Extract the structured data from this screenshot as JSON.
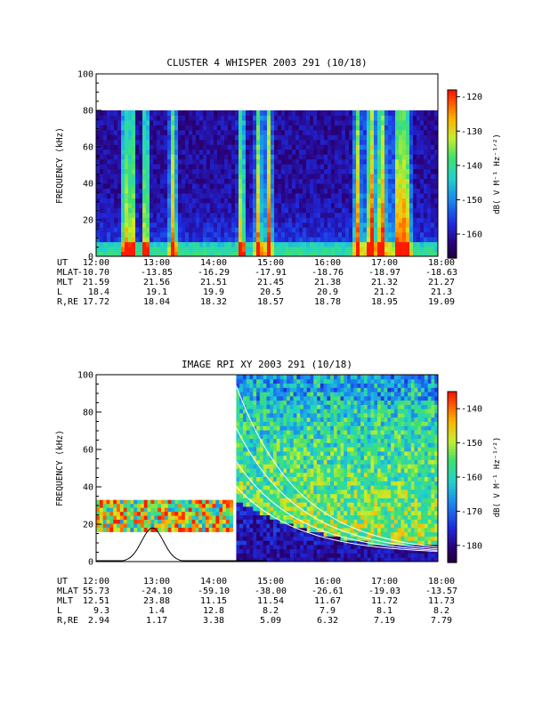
{
  "chart_data": [
    {
      "type": "heatmap",
      "title": "CLUSTER 4 WHISPER 2003 291 (10/18)",
      "ylabel": "FREQUENCY (kHz)",
      "ylim": [
        0,
        100
      ],
      "yticks": [
        "0",
        "20",
        "40",
        "60",
        "80",
        "100"
      ],
      "data_ylim": [
        0,
        80
      ],
      "colorbar": {
        "label": "dB( V M⁻¹ Hz⁻¹ᐟ²)",
        "range": [
          -167,
          -118
        ],
        "ticks": [
          "-120",
          "-130",
          "-140",
          "-150",
          "-160"
        ],
        "tick_values": [
          -120,
          -130,
          -140,
          -150,
          -160
        ]
      },
      "x": [
        "12:00",
        "13:00",
        "14:00",
        "15:00",
        "16:00",
        "17:00",
        "18:00"
      ],
      "row_labels": [
        "UT",
        "MLAT",
        "MLT",
        "L",
        "R,RE"
      ],
      "rows": {
        "MLAT": [
          "-10.70",
          "-13.85",
          "-16.29",
          "-17.91",
          "-18.76",
          "-18.97",
          "-18.63"
        ],
        "MLT": [
          "21.59",
          "21.56",
          "21.51",
          "21.45",
          "21.38",
          "21.32",
          "21.27"
        ],
        "L": [
          "18.4",
          "19.1",
          "19.9",
          "20.5",
          "20.9",
          "21.2",
          "21.3"
        ],
        "R,RE": [
          "17.72",
          "18.04",
          "18.32",
          "18.57",
          "18.78",
          "18.95",
          "19.09"
        ]
      }
    },
    {
      "type": "heatmap",
      "title": "IMAGE RPI XY 2003 291 (10/18)",
      "ylabel": "FREQUENCY (kHz)",
      "ylim": [
        0,
        100
      ],
      "yticks": [
        "0",
        "20",
        "40",
        "60",
        "80",
        "100"
      ],
      "colorbar": {
        "label": "dB( V M⁻¹ Hz⁻¹ᐟ²)",
        "range": [
          -185,
          -135
        ],
        "ticks": [
          "-140",
          "-150",
          "-160",
          "-170",
          "-180"
        ],
        "tick_values": [
          -140,
          -150,
          -160,
          -170,
          -180
        ]
      },
      "x": [
        "12:00",
        "13:00",
        "14:00",
        "15:00",
        "16:00",
        "17:00",
        "18:00"
      ],
      "row_labels": [
        "UT",
        "MLAT",
        "MLT",
        "L",
        "R,RE"
      ],
      "rows": {
        "MLAT": [
          "55.73",
          "-24.10",
          "-59.10",
          "-38.00",
          "-26.61",
          "-19.03",
          "-13.57"
        ],
        "MLT": [
          "12.51",
          "23.88",
          "11.15",
          "11.54",
          "11.67",
          "11.72",
          "11.73"
        ],
        "L": [
          "9.3",
          "1.4",
          "12.8",
          "8.2",
          "7.9",
          "8.1",
          "8.2"
        ],
        "R,RE": [
          "2.94",
          "1.17",
          "3.38",
          "5.09",
          "6.32",
          "7.19",
          "7.79"
        ]
      }
    }
  ]
}
